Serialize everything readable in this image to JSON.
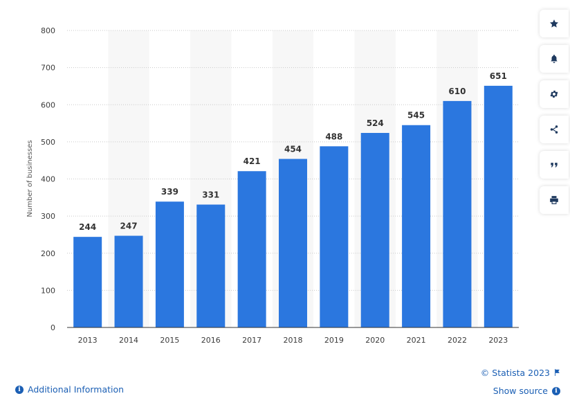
{
  "chart_data": {
    "type": "bar",
    "categories": [
      "2013",
      "2014",
      "2015",
      "2016",
      "2017",
      "2018",
      "2019",
      "2020",
      "2021",
      "2022",
      "2023"
    ],
    "values": [
      244,
      247,
      339,
      331,
      421,
      454,
      488,
      524,
      545,
      610,
      651
    ],
    "ylabel": "Number of businesses",
    "xlabel": "",
    "ylim": [
      0,
      800
    ],
    "yticks": [
      0,
      100,
      200,
      300,
      400,
      500,
      600,
      700,
      800
    ],
    "grid": true,
    "bar_color": "#2b77df",
    "alternate_band_color": "#f7f7f7"
  },
  "toolbar": {
    "buttons": [
      {
        "icon": "star-icon"
      },
      {
        "icon": "bell-icon"
      },
      {
        "icon": "gear-icon"
      },
      {
        "icon": "share-icon"
      },
      {
        "icon": "quote-icon"
      },
      {
        "icon": "print-icon"
      }
    ]
  },
  "footer": {
    "copyright": "© Statista 2023",
    "show_source": "Show source",
    "additional_info": "Additional Information"
  },
  "colors": {
    "link": "#1b5fb4",
    "bar": "#2b77df"
  }
}
